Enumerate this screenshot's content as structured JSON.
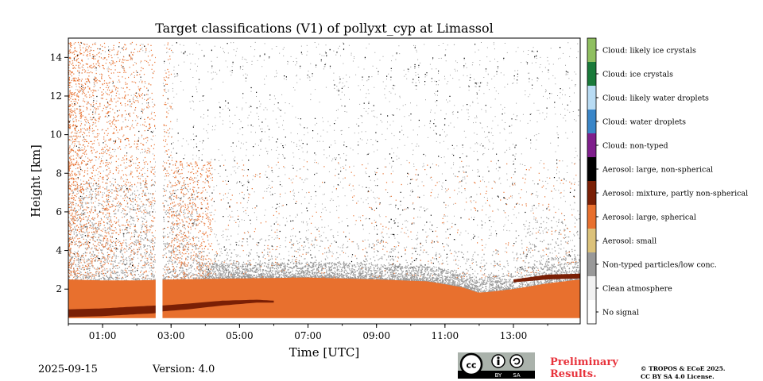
{
  "chart_data": {
    "type": "heatmap",
    "title": "Target classifications (V1) of pollyxt_cyp at Limassol",
    "xlabel": "Time [UTC]",
    "ylabel": "Height [km]",
    "xlim": [
      0.0,
      14.95
    ],
    "ylim": [
      0.2,
      15.0
    ],
    "xticks": [
      {
        "value": 1,
        "label": "01:00"
      },
      {
        "value": 3,
        "label": "03:00"
      },
      {
        "value": 5,
        "label": "05:00"
      },
      {
        "value": 7,
        "label": "07:00"
      },
      {
        "value": 9,
        "label": "09:00"
      },
      {
        "value": 11,
        "label": "11:00"
      },
      {
        "value": 13,
        "label": "13:00"
      }
    ],
    "yticks": [
      {
        "value": 2,
        "label": "2"
      },
      {
        "value": 4,
        "label": "4"
      },
      {
        "value": 6,
        "label": "6"
      },
      {
        "value": 8,
        "label": "8"
      },
      {
        "value": 10,
        "label": "10"
      },
      {
        "value": 12,
        "label": "12"
      },
      {
        "value": 14,
        "label": "14"
      }
    ],
    "classes": [
      {
        "label": "Cloud: likely ice crystals",
        "color": "#8fbf60"
      },
      {
        "label": "Cloud: ice crystals",
        "color": "#1a7a3a"
      },
      {
        "label": "Cloud: likely water droplets",
        "color": "#b9dcf4"
      },
      {
        "label": "Cloud: water droplets",
        "color": "#3a86c8"
      },
      {
        "label": "Cloud: non-typed",
        "color": "#7f1f8c"
      },
      {
        "label": "Aerosol: large, non-spherical",
        "color": "#000000"
      },
      {
        "label": "Aerosol: mixture, partly non-spherical",
        "color": "#7a1f05"
      },
      {
        "label": "Aerosol: large, spherical",
        "color": "#e8702e"
      },
      {
        "label": "Aerosol: small",
        "color": "#dcc27a"
      },
      {
        "label": "Non-typed particles/low conc.",
        "color": "#999999"
      },
      {
        "label": "Clean atmosphere",
        "color": "#f2f2f2"
      },
      {
        "label": "No signal",
        "color": "#ffffff"
      }
    ],
    "data_gap": {
      "start": 2.55,
      "end": 2.75
    },
    "layers": [
      {
        "class": "Aerosol: large, spherical",
        "times": [
          0.0,
          1.0,
          2.0,
          3.0,
          5.0,
          7.0,
          9.0,
          10.5,
          11.5,
          12.0,
          13.0,
          14.0,
          14.95
        ],
        "bottom": [
          0.5,
          0.5,
          0.5,
          0.5,
          0.5,
          0.5,
          0.5,
          0.5,
          0.5,
          0.5,
          0.5,
          0.5,
          0.5
        ],
        "top": [
          2.5,
          2.45,
          2.45,
          2.5,
          2.55,
          2.6,
          2.5,
          2.4,
          2.1,
          1.8,
          2.0,
          2.3,
          2.5
        ]
      },
      {
        "class": "Aerosol: mixture, partly non-spherical",
        "times": [
          0.0,
          1.0,
          2.0,
          2.55,
          2.75,
          3.5,
          4.5,
          5.5,
          6.0
        ],
        "bottom": [
          0.55,
          0.6,
          0.7,
          0.75,
          0.85,
          0.95,
          1.15,
          1.3,
          1.3
        ],
        "top": [
          0.95,
          1.0,
          1.1,
          1.15,
          1.15,
          1.25,
          1.4,
          1.45,
          1.4
        ]
      },
      {
        "class": "Aerosol: mixture, partly non-spherical",
        "times": [
          13.0,
          14.0,
          14.95
        ],
        "bottom": [
          2.35,
          2.5,
          2.55
        ],
        "top": [
          2.5,
          2.75,
          2.8
        ]
      }
    ],
    "colorbar": {
      "placement": "right"
    }
  },
  "footer": {
    "date": "2025-09-15",
    "version": "Version: 4.0",
    "preliminary_line1": "Preliminary",
    "preliminary_line2": "Results.",
    "copyright_line1": "© TROPOS & ECoE 2025.",
    "copyright_line2": "CC BY SA 4.0 License.",
    "license_badge": {
      "cc": "cc",
      "by": "BY",
      "sa": "SA"
    }
  }
}
